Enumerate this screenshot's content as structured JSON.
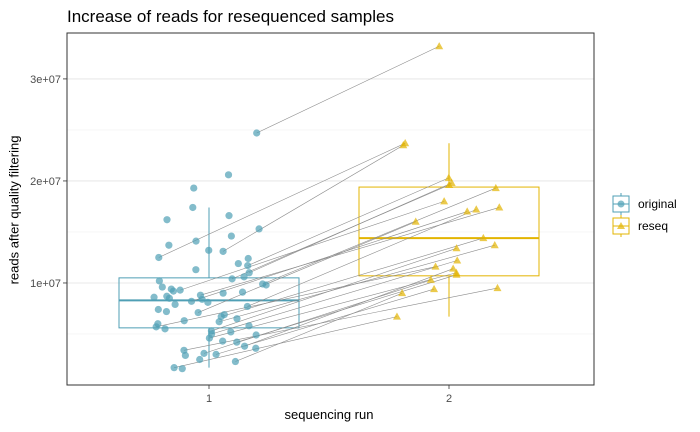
{
  "chart_data": {
    "type": "boxplot",
    "title": "Increase of reads for resequenced samples",
    "xlabel": "sequencing run",
    "ylabel": "reads after quality filtering",
    "x_categories": [
      "1",
      "2"
    ],
    "y_ticks": [
      {
        "value": 10000000,
        "label": "1e+07"
      },
      {
        "value": 20000000,
        "label": "2e+07"
      },
      {
        "value": 30000000,
        "label": "3e+07"
      }
    ],
    "ylim": [
      0,
      34500000
    ],
    "grid": true,
    "legend_position": "right",
    "series": [
      {
        "name": "original",
        "color": "#4f9fb5",
        "marker": "circle"
      },
      {
        "name": "reseq",
        "color": "#e3b400",
        "marker": "triangle"
      }
    ],
    "boxes": [
      {
        "group": "original",
        "x": "1",
        "lower_whisker": 1700000,
        "q1": 5600000,
        "median": 8300000,
        "q3": 10500000,
        "upper_whisker": 17400000
      },
      {
        "group": "reseq",
        "x": "2",
        "lower_whisker": 6700000,
        "q1": 10700000,
        "median": 14400000,
        "q3": 19400000,
        "upper_whisker": 23700000
      }
    ],
    "paired_samples": [
      {
        "original": 1700000,
        "reseq": 6700000
      },
      {
        "original": 2300000,
        "reseq": 9000000
      },
      {
        "original": 3000000,
        "reseq": 9400000
      },
      {
        "original": 3100000,
        "reseq": 10300000
      },
      {
        "original": 3400000,
        "reseq": 9500000
      },
      {
        "original": 3800000,
        "reseq": 11400000
      },
      {
        "original": 4200000,
        "reseq": 10800000
      },
      {
        "original": 4600000,
        "reseq": 11000000
      },
      {
        "original": 5000000,
        "reseq": 12200000
      },
      {
        "original": 5300000,
        "reseq": 13400000
      },
      {
        "original": 5700000,
        "reseq": 11600000
      },
      {
        "original": 6200000,
        "reseq": 13700000
      },
      {
        "original": 6700000,
        "reseq": 14400000
      },
      {
        "original": 7100000,
        "reseq": 16000000
      },
      {
        "original": 7700000,
        "reseq": 17200000
      },
      {
        "original": 8200000,
        "reseq": 17000000
      },
      {
        "original": 8800000,
        "reseq": 17400000
      },
      {
        "original": 9300000,
        "reseq": 18000000
      },
      {
        "original": 9900000,
        "reseq": 19300000
      },
      {
        "original": 10400000,
        "reseq": 19600000
      },
      {
        "original": 11000000,
        "reseq": 19800000
      },
      {
        "original": 11700000,
        "reseq": 20300000
      },
      {
        "original": 12500000,
        "reseq": 23700000
      },
      {
        "original": 13100000,
        "reseq": 23500000
      },
      {
        "original": 24700000,
        "reseq": 33200000
      }
    ],
    "unpaired_original": [
      1600000,
      2500000,
      2900000,
      3600000,
      4300000,
      4900000,
      5200000,
      5500000,
      5800000,
      6000000,
      6300000,
      6500000,
      6900000,
      7200000,
      7400000,
      7900000,
      8100000,
      8400000,
      8500000,
      8600000,
      8700000,
      9000000,
      9100000,
      9200000,
      9400000,
      9600000,
      9800000,
      10200000,
      10600000,
      11300000,
      11900000,
      12400000,
      13200000,
      13700000,
      14100000,
      14600000,
      15300000,
      16200000,
      16600000,
      17400000,
      19300000,
      20600000
    ]
  }
}
